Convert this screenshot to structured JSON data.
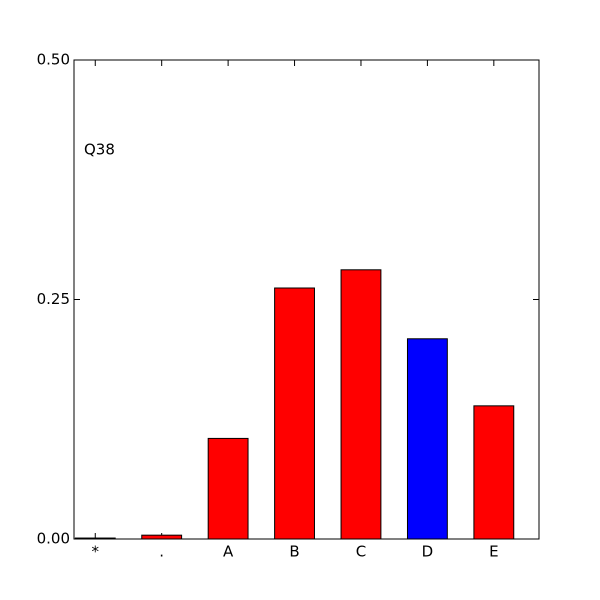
{
  "chart_data": {
    "type": "bar",
    "annotation": "Q38",
    "categories": [
      "*",
      ".",
      "A",
      "B",
      "C",
      "D",
      "E"
    ],
    "values": [
      0.001,
      0.004,
      0.105,
      0.262,
      0.281,
      0.209,
      0.139
    ],
    "colors": [
      "#ff0000",
      "#ff0000",
      "#ff0000",
      "#ff0000",
      "#ff0000",
      "#0000ff",
      "#ff0000"
    ],
    "ylim": [
      0,
      0.5
    ],
    "yticks": [
      {
        "value": 0,
        "label": "0.00"
      },
      {
        "value": 0.25,
        "label": "0.25"
      },
      {
        "value": 0.5,
        "label": "0.50"
      }
    ],
    "grid": false
  }
}
